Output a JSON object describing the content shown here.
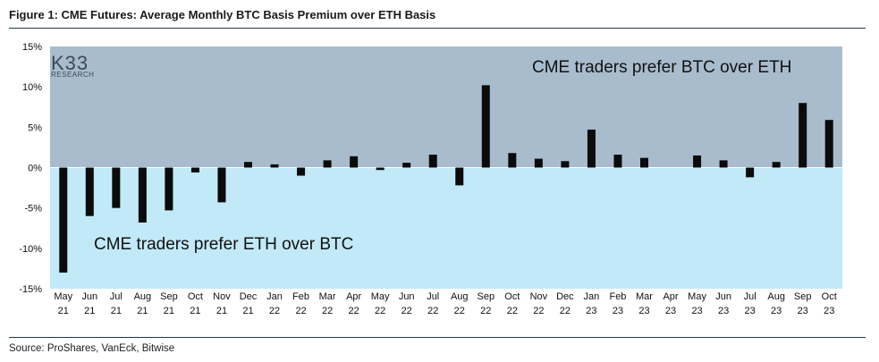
{
  "figure": {
    "title": "Figure 1: CME Futures: Average Monthly BTC Basis Premium over ETH Basis",
    "source": "Source: ProShares, VanEck, Bitwise"
  },
  "logo": {
    "main": "K33",
    "sub": "RESEARCH"
  },
  "colors": {
    "upper_band": "#a8bccd",
    "lower_band": "#c2e9f7",
    "bar": "#0b0b0b",
    "rule": "#1f3a44"
  },
  "chart_data": {
    "type": "bar",
    "title": "Figure 1: CME Futures: Average Monthly BTC Basis Premium over ETH Basis",
    "ylim": [
      -0.15,
      0.15
    ],
    "yticks": [
      0.15,
      0.1,
      0.05,
      0.0,
      -0.05,
      -0.1,
      -0.15
    ],
    "ytick_labels": [
      "15%",
      "10%",
      "5%",
      "0%",
      "-5%",
      "-10%",
      "-15%"
    ],
    "categories": [
      "May 21",
      "Jun 21",
      "Jul 21",
      "Aug 21",
      "Sep 21",
      "Oct 21",
      "Nov 21",
      "Dec 21",
      "Jan 22",
      "Feb 22",
      "Mar 22",
      "Apr 22",
      "May 22",
      "Jun 22",
      "Jul 22",
      "Aug 22",
      "Sep 22",
      "Oct 22",
      "Nov 22",
      "Dec 22",
      "Jan 23",
      "Feb 23",
      "Mar 23",
      "Apr 23",
      "May 23",
      "Jun 23",
      "Jul 23",
      "Aug 23",
      "Sep 23",
      "Oct 23"
    ],
    "category_lines": [
      [
        "May",
        "21"
      ],
      [
        "Jun",
        "21"
      ],
      [
        "Jul",
        "21"
      ],
      [
        "Aug",
        "21"
      ],
      [
        "Sep",
        "21"
      ],
      [
        "Oct",
        "21"
      ],
      [
        "Nov",
        "21"
      ],
      [
        "Dec",
        "21"
      ],
      [
        "Jan",
        "22"
      ],
      [
        "Feb",
        "22"
      ],
      [
        "Mar",
        "22"
      ],
      [
        "Apr",
        "22"
      ],
      [
        "May",
        "22"
      ],
      [
        "Jun",
        "22"
      ],
      [
        "Jul",
        "22"
      ],
      [
        "Aug",
        "22"
      ],
      [
        "Sep",
        "22"
      ],
      [
        "Oct",
        "22"
      ],
      [
        "Nov",
        "22"
      ],
      [
        "Dec",
        "22"
      ],
      [
        "Jan",
        "23"
      ],
      [
        "Feb",
        "23"
      ],
      [
        "Mar",
        "23"
      ],
      [
        "Apr",
        "23"
      ],
      [
        "May",
        "23"
      ],
      [
        "Jun",
        "23"
      ],
      [
        "Jul",
        "23"
      ],
      [
        "Aug",
        "23"
      ],
      [
        "Sep",
        "23"
      ],
      [
        "Oct",
        "23"
      ]
    ],
    "values": [
      -0.13,
      -0.06,
      -0.05,
      -0.068,
      -0.053,
      -0.006,
      -0.043,
      0.007,
      0.004,
      -0.01,
      0.009,
      0.014,
      -0.003,
      0.006,
      0.016,
      -0.022,
      0.102,
      0.018,
      0.011,
      0.008,
      0.047,
      0.016,
      0.012,
      0.0,
      0.015,
      0.009,
      -0.012,
      0.007,
      0.08,
      0.059
    ],
    "annotations": {
      "upper": "CME traders prefer BTC over ETH",
      "lower": "CME traders prefer ETH over BTC"
    },
    "grid": false
  }
}
